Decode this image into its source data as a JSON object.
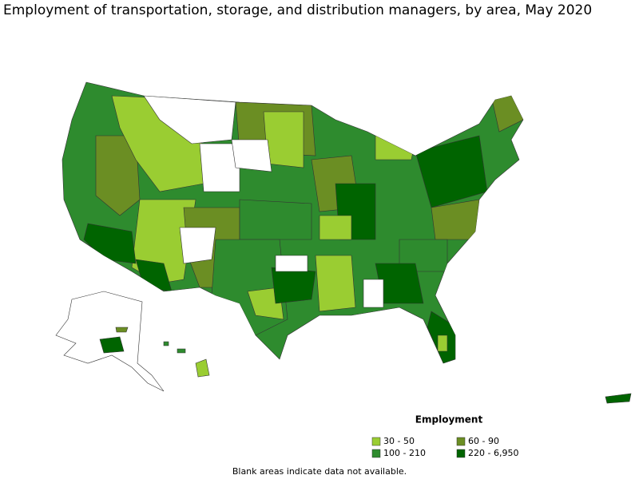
{
  "title": "Employment of transportation, storage, and distribution managers, by area, May 2020",
  "legend": {
    "title": "Employment",
    "items": [
      {
        "label": "30 - 50",
        "color": "#9acd32"
      },
      {
        "label": "60 - 90",
        "color": "#6b8e23"
      },
      {
        "label": "100 - 210",
        "color": "#2e8b2e"
      },
      {
        "label": "220 - 6,950",
        "color": "#006400"
      }
    ]
  },
  "footnote": "Blank areas indicate data not available."
}
